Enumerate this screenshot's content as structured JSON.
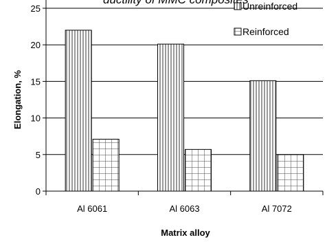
{
  "chart_data": {
    "type": "bar",
    "title": "ductility of MMC composites",
    "xlabel": "Matrix alloy",
    "ylabel": "Elongation, %",
    "categories": [
      "Al 6061",
      "Al 6063",
      "Al 7072"
    ],
    "series": [
      {
        "name": "Unreinforced",
        "values": [
          22,
          20.1,
          15.1
        ],
        "pattern": "vertical-stripes"
      },
      {
        "name": "Reinforced",
        "values": [
          7.1,
          5.7,
          5.0
        ],
        "pattern": "grid"
      }
    ],
    "ylim": [
      0,
      25
    ],
    "yticks": [
      "0",
      "5",
      "10",
      "15",
      "20",
      "25"
    ],
    "grid": true,
    "legend_position": "top-right"
  }
}
